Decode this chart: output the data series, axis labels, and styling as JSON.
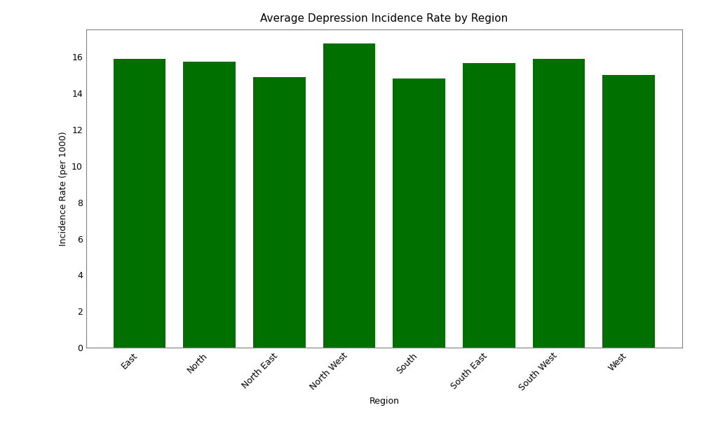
{
  "categories": [
    "East",
    "North",
    "North East",
    "North West",
    "South",
    "South East",
    "South West",
    "West"
  ],
  "values": [
    15.9,
    15.75,
    14.9,
    16.75,
    14.8,
    15.65,
    15.9,
    15.0
  ],
  "bar_color": "#007000",
  "title": "Average Depression Incidence Rate by Region",
  "xlabel": "Region",
  "ylabel": "Incidence Rate (per 1000)",
  "ylim": [
    0,
    17.5
  ],
  "title_fontsize": 11,
  "label_fontsize": 9,
  "tick_fontsize": 9,
  "background_color": "#ffffff"
}
